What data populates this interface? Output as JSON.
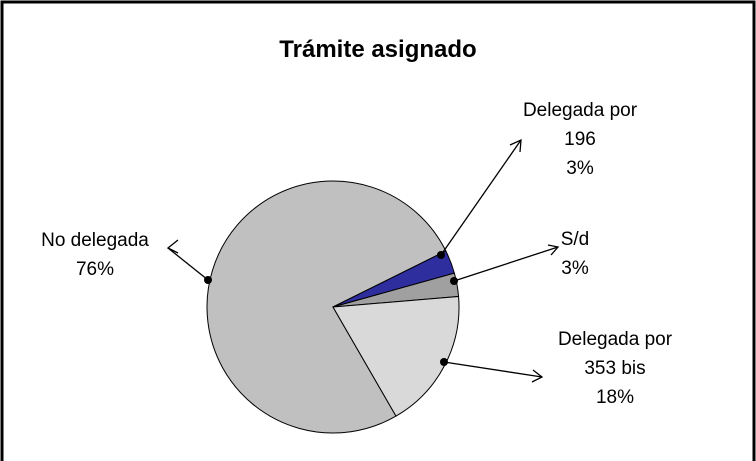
{
  "chart_data": {
    "type": "pie",
    "title": "Trámite  asignado",
    "categories": [
      "No delegada",
      "Delegada por 196",
      "S/d",
      "Delegada por 353 bis"
    ],
    "values": [
      76,
      3,
      3,
      18
    ],
    "value_labels": [
      "76%",
      "3%",
      "3%",
      "18%"
    ],
    "colors": [
      "#c0c0c0",
      "#2e2e9e",
      "#a0a0a0",
      "#d9d9d9"
    ]
  }
}
